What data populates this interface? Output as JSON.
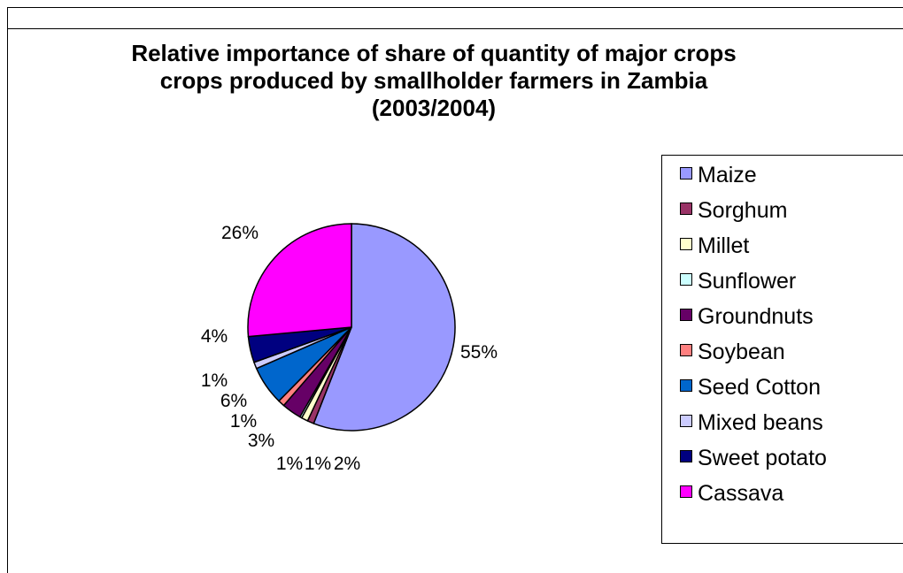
{
  "chart_data": {
    "type": "pie",
    "title_lines": [
      "Relative importance of share of quantity of major crops",
      "crops produced by smallholder farmers in Zambia",
      "(2003/2004)"
    ],
    "slices": [
      {
        "label": "Maize",
        "value": 55,
        "text": "55%",
        "color": "#9999ff"
      },
      {
        "label": "Sorghum",
        "value": 1,
        "text": "1%",
        "color": "#993366"
      },
      {
        "label": "Millet",
        "value": 1,
        "text": "1%",
        "color": "#ffffcc"
      },
      {
        "label": "Sunflower",
        "value": 0.3,
        "text": "",
        "color": "#ccffff"
      },
      {
        "label": "Groundnuts",
        "value": 3,
        "text": "3%",
        "color": "#660066"
      },
      {
        "label": "Soybean",
        "value": 1,
        "text": "1%",
        "color": "#ff8080"
      },
      {
        "label": "Seed Cotton",
        "value": 6,
        "text": "6%",
        "color": "#0066cc"
      },
      {
        "label": "Mixed beans",
        "value": 1,
        "text": "1%",
        "color": "#ccccff"
      },
      {
        "label": "Sweet potato",
        "value": 4,
        "text": "4%",
        "color": "#000080"
      },
      {
        "label": "Cassava",
        "value": 26,
        "text": "26%",
        "color": "#ff00ff"
      }
    ],
    "extra_labels": [
      "2%"
    ],
    "legend_position": "right"
  }
}
